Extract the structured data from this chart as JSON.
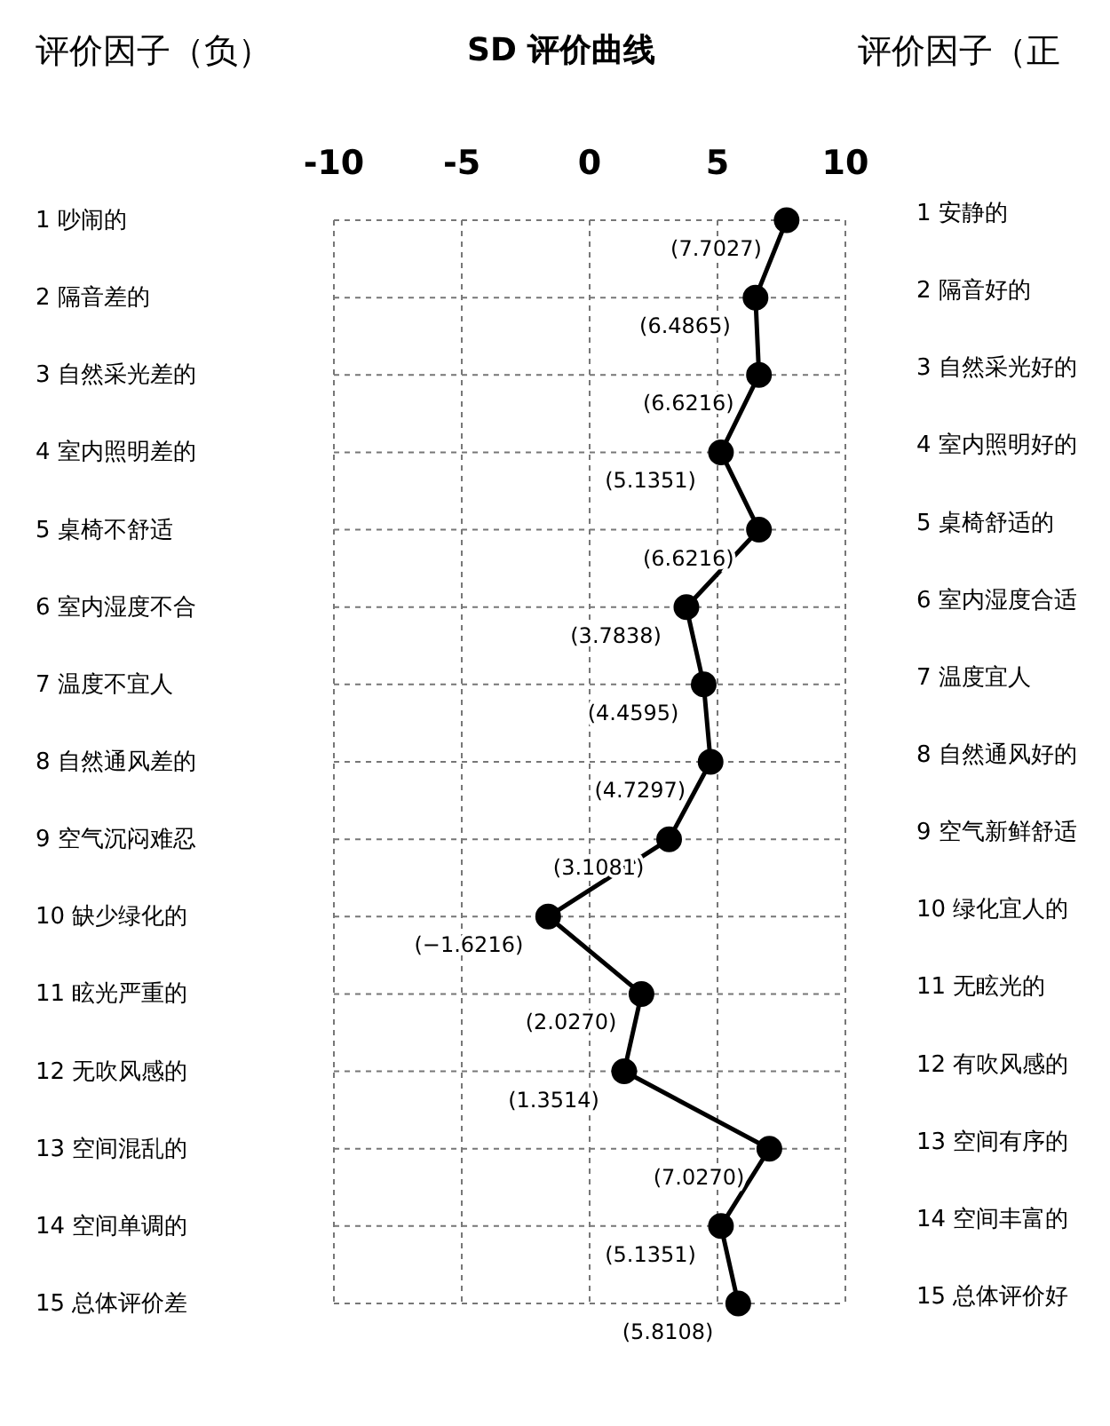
{
  "chart_data": {
    "type": "line",
    "orientation": "horizontal",
    "title": "SD 评价曲线",
    "ylabel": "评价因子（负）",
    "y2label": "评价因子（正",
    "categories": [
      "1 吵闹的",
      "2 隔音差的",
      "3 自然采光差的",
      "4 室内照明差的",
      "5 桌椅不舒适",
      "6 室内湿度不合",
      "7 温度不宜人",
      "8 自然通风差的",
      "9 空气沉闷难忍",
      "10 缺少绿化的",
      "11 眩光严重的",
      "12 无吹风感的",
      "13 空间混乱的",
      "14 空间单调的",
      "15 总体评价差"
    ],
    "y2_categories": [
      "1 安静的",
      "2 隔音好的",
      "3 自然采光好的",
      "4 室内照明好的",
      "5 桌椅舒适的",
      "6 室内湿度合适",
      "7 温度宜人",
      "8 自然通风好的",
      "9 空气新鲜舒适",
      "10 绿化宜人的",
      "11 无眩光的",
      "12 有吹风感的",
      "13 空间有序的",
      "14 空间丰富的",
      "15 总体评价好"
    ],
    "values": [
      7.7027,
      6.4865,
      6.6216,
      5.1351,
      6.6216,
      3.7838,
      4.4595,
      4.7297,
      3.1081,
      -1.6216,
      2.027,
      1.3514,
      7.027,
      5.1351,
      5.8108
    ],
    "value_labels": [
      "(7.7027)",
      "(6.4865)",
      "(6.6216)",
      "(5.1351)",
      "(6.6216)",
      "(3.7838)",
      "(4.4595)",
      "(4.7297)",
      "(3.1081)",
      "(−1.6216)",
      "(2.0270)",
      "(1.3514)",
      "(7.0270)",
      "(5.1351)",
      "(5.8108)"
    ],
    "color": "#000000",
    "marker": "circle",
    "line_style": "solid",
    "xlim": [
      -10,
      10
    ],
    "xticks": [
      -10,
      -5,
      0,
      5,
      10
    ],
    "grid": true
  }
}
